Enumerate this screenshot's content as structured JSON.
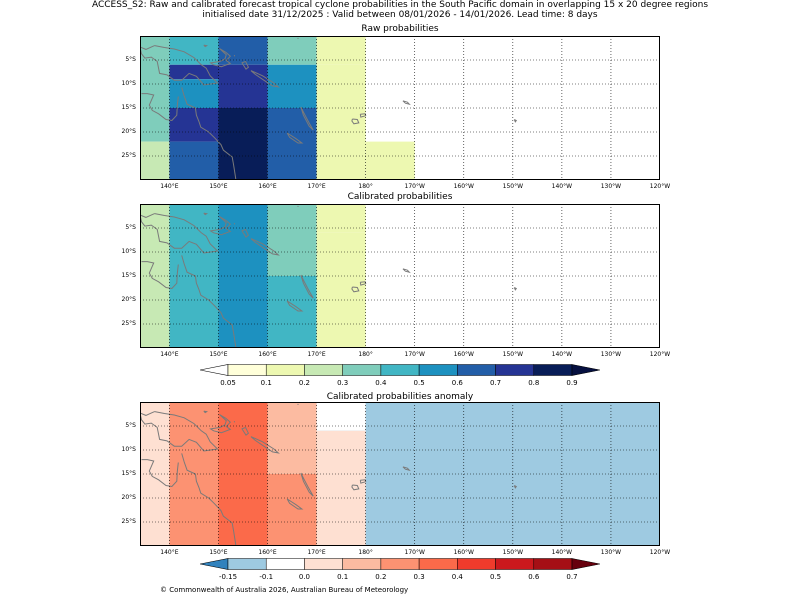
{
  "title": {
    "line1": "ACCESS_S2: Raw and calibrated forecast tropical cyclone probabilities in the South Pacific domain in overlapping 15 x 20 degree regions",
    "line2": "initialised date 31/12/2025 :  Valid between 08/01/2026 - 14/01/2026. Lead time: 8 days"
  },
  "panels": [
    {
      "title": "Raw probabilities"
    },
    {
      "title": "Calibrated probabilities"
    },
    {
      "title": "Calibrated probabilities anomaly"
    }
  ],
  "lat_labels": [
    "5°S",
    "10°S",
    "15°S",
    "20°S",
    "25°S"
  ],
  "lon_labels": [
    "140°E",
    "150°E",
    "160°E",
    "170°E",
    "180°",
    "170°W",
    "160°W",
    "150°W",
    "140°W",
    "130°W",
    "120°W"
  ],
  "map_data": {
    "domain": {
      "lon_range": [
        134,
        240
      ],
      "lat_range": [
        0,
        -30
      ],
      "lat_ticks": [
        -5,
        -10,
        -15,
        -20,
        -25
      ],
      "lon_ticks": [
        140,
        150,
        160,
        170,
        180,
        190,
        200,
        210,
        220,
        230,
        240
      ]
    },
    "raw": {
      "cells": [
        {
          "lon": [
            134,
            140
          ],
          "lat": [
            0,
            -22
          ],
          "value": 0.35
        },
        {
          "lon": [
            134,
            140
          ],
          "lat": [
            -22,
            -30
          ],
          "value": 0.25
        },
        {
          "lon": [
            140,
            150
          ],
          "lat": [
            0,
            -6
          ],
          "value": 0.45
        },
        {
          "lon": [
            140,
            150
          ],
          "lat": [
            -6,
            -9
          ],
          "value": 0.75
        },
        {
          "lon": [
            140,
            150
          ],
          "lat": [
            -9,
            -15
          ],
          "value": 0.55
        },
        {
          "lon": [
            140,
            150
          ],
          "lat": [
            -15,
            -22
          ],
          "value": 0.75
        },
        {
          "lon": [
            140,
            150
          ],
          "lat": [
            -22,
            -30
          ],
          "value": 0.65
        },
        {
          "lon": [
            150,
            160
          ],
          "lat": [
            0,
            -6
          ],
          "value": 0.65
        },
        {
          "lon": [
            150,
            160
          ],
          "lat": [
            -6,
            -15
          ],
          "value": 0.75
        },
        {
          "lon": [
            150,
            160
          ],
          "lat": [
            -15,
            -30
          ],
          "value": 0.85
        },
        {
          "lon": [
            160,
            170
          ],
          "lat": [
            0,
            -6
          ],
          "value": 0.35
        },
        {
          "lon": [
            160,
            170
          ],
          "lat": [
            -6,
            -15
          ],
          "value": 0.55
        },
        {
          "lon": [
            160,
            170
          ],
          "lat": [
            -15,
            -30
          ],
          "value": 0.65
        },
        {
          "lon": [
            170,
            180
          ],
          "lat": [
            0,
            -6
          ],
          "value": 0.1
        },
        {
          "lon": [
            170,
            180
          ],
          "lat": [
            -6,
            -30
          ],
          "value": 0.15
        },
        {
          "lon": [
            180,
            190
          ],
          "lat": [
            -22,
            -30
          ],
          "value": 0.1
        }
      ]
    },
    "calibrated": {
      "cells": [
        {
          "lon": [
            134,
            140
          ],
          "lat": [
            0,
            -30
          ],
          "value": 0.25
        },
        {
          "lon": [
            140,
            150
          ],
          "lat": [
            0,
            -30
          ],
          "value": 0.45
        },
        {
          "lon": [
            150,
            160
          ],
          "lat": [
            0,
            -30
          ],
          "value": 0.55
        },
        {
          "lon": [
            160,
            170
          ],
          "lat": [
            0,
            -15
          ],
          "value": 0.35
        },
        {
          "lon": [
            160,
            170
          ],
          "lat": [
            -15,
            -30
          ],
          "value": 0.45
        },
        {
          "lon": [
            170,
            180
          ],
          "lat": [
            0,
            -6
          ],
          "value": 0.1
        },
        {
          "lon": [
            170,
            180
          ],
          "lat": [
            -6,
            -30
          ],
          "value": 0.15
        }
      ]
    },
    "anomaly": {
      "background": -0.15,
      "cells": [
        {
          "lon": [
            134,
            140
          ],
          "lat": [
            0,
            -30
          ],
          "value": 0.05
        },
        {
          "lon": [
            140,
            150
          ],
          "lat": [
            0,
            -30
          ],
          "value": 0.25
        },
        {
          "lon": [
            150,
            160
          ],
          "lat": [
            0,
            -30
          ],
          "value": 0.35
        },
        {
          "lon": [
            160,
            170
          ],
          "lat": [
            0,
            -15
          ],
          "value": 0.15
        },
        {
          "lon": [
            160,
            170
          ],
          "lat": [
            -15,
            -30
          ],
          "value": 0.25
        },
        {
          "lon": [
            170,
            180
          ],
          "lat": [
            0,
            -6
          ],
          "value": -0.05
        },
        {
          "lon": [
            170,
            180
          ],
          "lat": [
            -6,
            -30
          ],
          "value": 0.0
        }
      ]
    }
  },
  "prob_colorbar": {
    "bounds": [
      0.05,
      0.1,
      0.2,
      0.3,
      0.4,
      0.5,
      0.6,
      0.7,
      0.8,
      0.9
    ],
    "tick_labels": [
      "0.05",
      "0.1",
      "0.2",
      "0.3",
      "0.4",
      "0.5",
      "0.6",
      "0.7",
      "0.8",
      "0.9"
    ],
    "colors": [
      "#ffffd9",
      "#edf8b1",
      "#c7e9b4",
      "#7fcdbb",
      "#41b6c4",
      "#1d91c0",
      "#225ea8",
      "#253494",
      "#081d58"
    ],
    "under_color": "#ffffff",
    "over_color": "#061040"
  },
  "anom_colorbar": {
    "bounds": [
      -0.15,
      -0.1,
      0.0,
      0.1,
      0.2,
      0.3,
      0.4,
      0.5,
      0.6,
      0.7
    ],
    "tick_labels": [
      "-0.15",
      "-0.1",
      "0.0",
      "0.1",
      "0.2",
      "0.3",
      "0.4",
      "0.5",
      "0.6",
      "0.7"
    ],
    "colors": [
      "#9ecae1",
      "#ffffff",
      "#fee0d2",
      "#fcbba1",
      "#fc9272",
      "#fb6a4a",
      "#ef3b2c",
      "#cb181d",
      "#a50f15"
    ],
    "under_color": "#3182bd",
    "over_color": "#67000d"
  },
  "footer": "© Commonwealth of Australia 2026, Australian Bureau of Meteorology"
}
